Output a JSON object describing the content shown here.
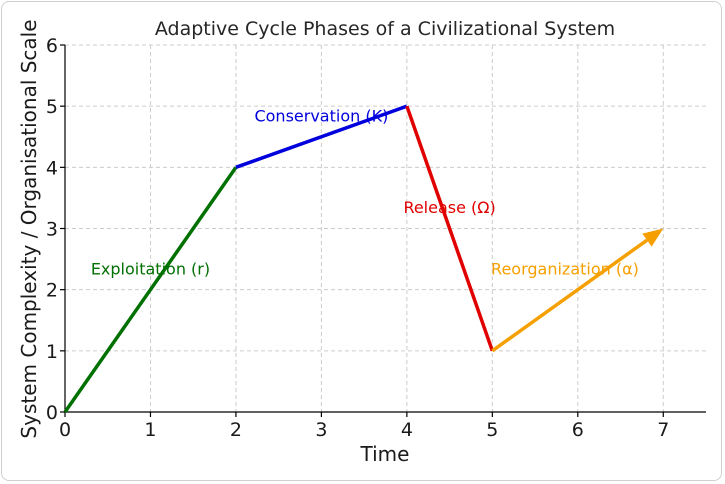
{
  "chart_data": {
    "type": "line",
    "title": "Adaptive Cycle Phases of a Civilizational System",
    "xlabel": "Time",
    "ylabel": "System Complexity / Organisational Scale",
    "xlim": [
      0,
      7.5
    ],
    "ylim": [
      0,
      6
    ],
    "xticks": [
      0,
      1,
      2,
      3,
      4,
      5,
      6,
      7
    ],
    "yticks": [
      0,
      1,
      2,
      3,
      4,
      5,
      6
    ],
    "grid": true,
    "series": [
      {
        "name": "Exploitation (r)",
        "color": "#007000",
        "x": [
          0,
          2
        ],
        "y": [
          0,
          4
        ],
        "label_at": {
          "x": 1,
          "y": 2.35
        }
      },
      {
        "name": "Conservation (K)",
        "color": "#0000dd",
        "x": [
          2,
          4
        ],
        "y": [
          4,
          5
        ],
        "label_at": {
          "x": 3,
          "y": 4.85
        }
      },
      {
        "name": "Release (Ω)",
        "color": "#e00000",
        "x": [
          4,
          5
        ],
        "y": [
          5,
          1
        ],
        "label_at": {
          "x": 4.5,
          "y": 3.35
        }
      },
      {
        "name": "Reorganization (α)",
        "color": "#f5a000",
        "x": [
          5,
          7
        ],
        "y": [
          1,
          3
        ],
        "label_at": {
          "x": 5.85,
          "y": 2.35
        },
        "arrow": true
      }
    ]
  }
}
